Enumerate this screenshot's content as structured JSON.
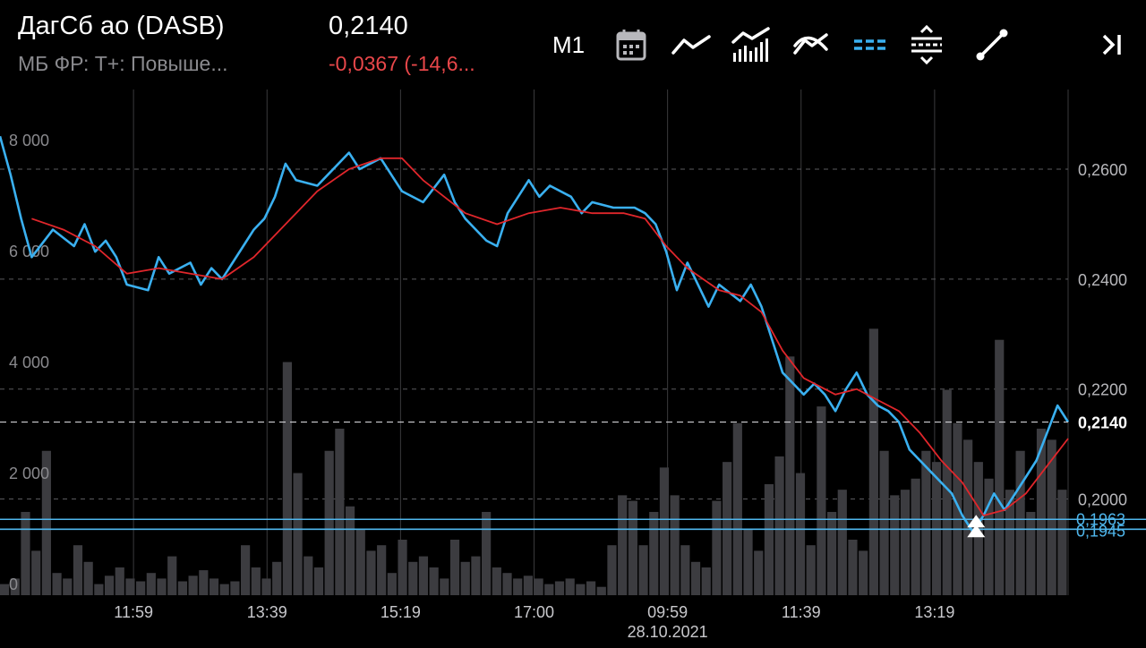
{
  "header": {
    "title": "ДагСб ао (DASB)",
    "subtitle": "МБ ФР: Т+: Повыше...",
    "price": "0,2140",
    "change": "-0,0367 (-14,6..."
  },
  "toolbar": {
    "timeframe": "M1",
    "icons": [
      "calendar-icon",
      "line-chart-icon",
      "volume-chart-icon",
      "indicators-icon",
      "horizontal-lines-icon",
      "channel-icon",
      "trend-line-icon",
      "scroll-end-icon"
    ]
  },
  "colors": {
    "background": "#000000",
    "price_line": "#3ab0f0",
    "ma_line": "#e0262b",
    "grid": "#3a3a3c",
    "level_line": "#4fb6ec",
    "change_negative": "#e8474a"
  },
  "chart_data": {
    "type": "line",
    "x_tick_labels": [
      "11:59",
      "13:39",
      "15:19",
      "17:00",
      "09:59",
      "11:39",
      "13:19"
    ],
    "date_label": "28.10.2021",
    "price_axis": {
      "ylim": [
        0.1825,
        0.2745
      ],
      "ticks": [
        0.26,
        0.24,
        0.22,
        0.2
      ],
      "tick_labels": [
        "0,2600",
        "0,2400",
        "0,2200",
        "0,2000"
      ]
    },
    "volume_axis": {
      "ylim": [
        0,
        9110
      ],
      "tick_labels": [
        "8 000",
        "6 000",
        "4 000",
        "2 000",
        "0"
      ],
      "ticks": [
        8000,
        6000,
        4000,
        2000,
        0
      ]
    },
    "current_price": {
      "value": 0.214,
      "label": "0,2140"
    },
    "levels": [
      {
        "value": 0.1963,
        "label": "0,1963"
      },
      {
        "value": 0.1945,
        "label": "0,1945"
      }
    ],
    "series": [
      {
        "name": "",
        "style": "price",
        "values": [
          [
            0,
            0.266
          ],
          [
            1,
            0.259
          ],
          [
            2,
            0.251
          ],
          [
            3,
            0.244
          ],
          [
            5,
            0.249
          ],
          [
            7,
            0.246
          ],
          [
            8,
            0.25
          ],
          [
            9,
            0.245
          ],
          [
            10,
            0.247
          ],
          [
            11,
            0.244
          ],
          [
            12,
            0.239
          ],
          [
            14,
            0.238
          ],
          [
            15,
            0.244
          ],
          [
            16,
            0.241
          ],
          [
            18,
            0.243
          ],
          [
            19,
            0.239
          ],
          [
            20,
            0.242
          ],
          [
            21,
            0.24
          ],
          [
            23,
            0.246
          ],
          [
            24,
            0.249
          ],
          [
            25,
            0.251
          ],
          [
            26,
            0.255
          ],
          [
            27,
            0.261
          ],
          [
            28,
            0.258
          ],
          [
            30,
            0.257
          ],
          [
            31,
            0.259
          ],
          [
            33,
            0.263
          ],
          [
            34,
            0.26
          ],
          [
            36,
            0.262
          ],
          [
            38,
            0.256
          ],
          [
            40,
            0.254
          ],
          [
            42,
            0.259
          ],
          [
            43,
            0.254
          ],
          [
            44,
            0.251
          ],
          [
            46,
            0.247
          ],
          [
            47,
            0.246
          ],
          [
            48,
            0.252
          ],
          [
            50,
            0.258
          ],
          [
            51,
            0.255
          ],
          [
            52,
            0.257
          ],
          [
            54,
            0.255
          ],
          [
            55,
            0.252
          ],
          [
            56,
            0.254
          ],
          [
            58,
            0.253
          ],
          [
            60,
            0.253
          ],
          [
            61,
            0.252
          ],
          [
            62,
            0.25
          ],
          [
            63,
            0.245
          ],
          [
            64,
            0.238
          ],
          [
            65,
            0.243
          ],
          [
            67,
            0.235
          ],
          [
            68,
            0.239
          ],
          [
            70,
            0.236
          ],
          [
            71,
            0.239
          ],
          [
            72,
            0.235
          ],
          [
            73,
            0.229
          ],
          [
            74,
            0.223
          ],
          [
            76,
            0.219
          ],
          [
            77,
            0.221
          ],
          [
            78,
            0.219
          ],
          [
            79,
            0.216
          ],
          [
            80,
            0.22
          ],
          [
            81,
            0.223
          ],
          [
            82,
            0.219
          ],
          [
            83,
            0.217
          ],
          [
            84,
            0.216
          ],
          [
            85,
            0.214
          ],
          [
            86,
            0.209
          ],
          [
            88,
            0.205
          ],
          [
            90,
            0.201
          ],
          [
            91,
            0.197
          ],
          [
            92,
            0.194
          ],
          [
            93,
            0.197
          ],
          [
            94,
            0.201
          ],
          [
            95,
            0.198
          ],
          [
            97,
            0.204
          ],
          [
            98,
            0.207
          ],
          [
            99,
            0.212
          ],
          [
            100,
            0.217
          ],
          [
            101,
            0.214
          ]
        ]
      },
      {
        "name": "",
        "style": "moving_average",
        "values": [
          [
            3,
            0.251
          ],
          [
            6,
            0.249
          ],
          [
            9,
            0.246
          ],
          [
            12,
            0.241
          ],
          [
            15,
            0.242
          ],
          [
            18,
            0.241
          ],
          [
            21,
            0.24
          ],
          [
            24,
            0.244
          ],
          [
            27,
            0.25
          ],
          [
            30,
            0.256
          ],
          [
            33,
            0.26
          ],
          [
            36,
            0.262
          ],
          [
            38,
            0.262
          ],
          [
            40,
            0.258
          ],
          [
            44,
            0.252
          ],
          [
            47,
            0.25
          ],
          [
            50,
            0.252
          ],
          [
            53,
            0.253
          ],
          [
            56,
            0.252
          ],
          [
            59,
            0.252
          ],
          [
            61,
            0.251
          ],
          [
            63,
            0.246
          ],
          [
            65,
            0.242
          ],
          [
            68,
            0.238
          ],
          [
            70,
            0.237
          ],
          [
            72,
            0.234
          ],
          [
            74,
            0.227
          ],
          [
            76,
            0.222
          ],
          [
            79,
            0.219
          ],
          [
            81,
            0.22
          ],
          [
            83,
            0.218
          ],
          [
            85,
            0.216
          ],
          [
            87,
            0.212
          ],
          [
            89,
            0.207
          ],
          [
            91,
            0.203
          ],
          [
            93,
            0.197
          ],
          [
            95,
            0.198
          ],
          [
            97,
            0.201
          ],
          [
            99,
            0.206
          ],
          [
            101,
            0.211
          ]
        ]
      }
    ],
    "volume": {
      "description_levels_note": "",
      "values": [
        200,
        300,
        1500,
        800,
        2600,
        400,
        300,
        900,
        600,
        200,
        350,
        500,
        300,
        250,
        400,
        300,
        700,
        250,
        350,
        450,
        300,
        200,
        250,
        900,
        500,
        300,
        600,
        4200,
        2200,
        700,
        500,
        2600,
        3000,
        1600,
        1200,
        800,
        900,
        400,
        1000,
        600,
        700,
        500,
        300,
        1000,
        600,
        700,
        1500,
        500,
        400,
        300,
        350,
        300,
        200,
        250,
        300,
        200,
        250,
        150,
        900,
        1800,
        1700,
        900,
        1500,
        2300,
        1800,
        900,
        600,
        500,
        1700,
        2400,
        3100,
        1200,
        800,
        2000,
        2500,
        4300,
        2200,
        900,
        3400,
        1500,
        1900,
        1000,
        800,
        4800,
        2600,
        1800,
        1900,
        2100,
        2600,
        2400,
        3700,
        3100,
        2800,
        2400,
        2100,
        4600,
        1900,
        2600,
        1500,
        3000,
        2800,
        1900
      ]
    }
  }
}
